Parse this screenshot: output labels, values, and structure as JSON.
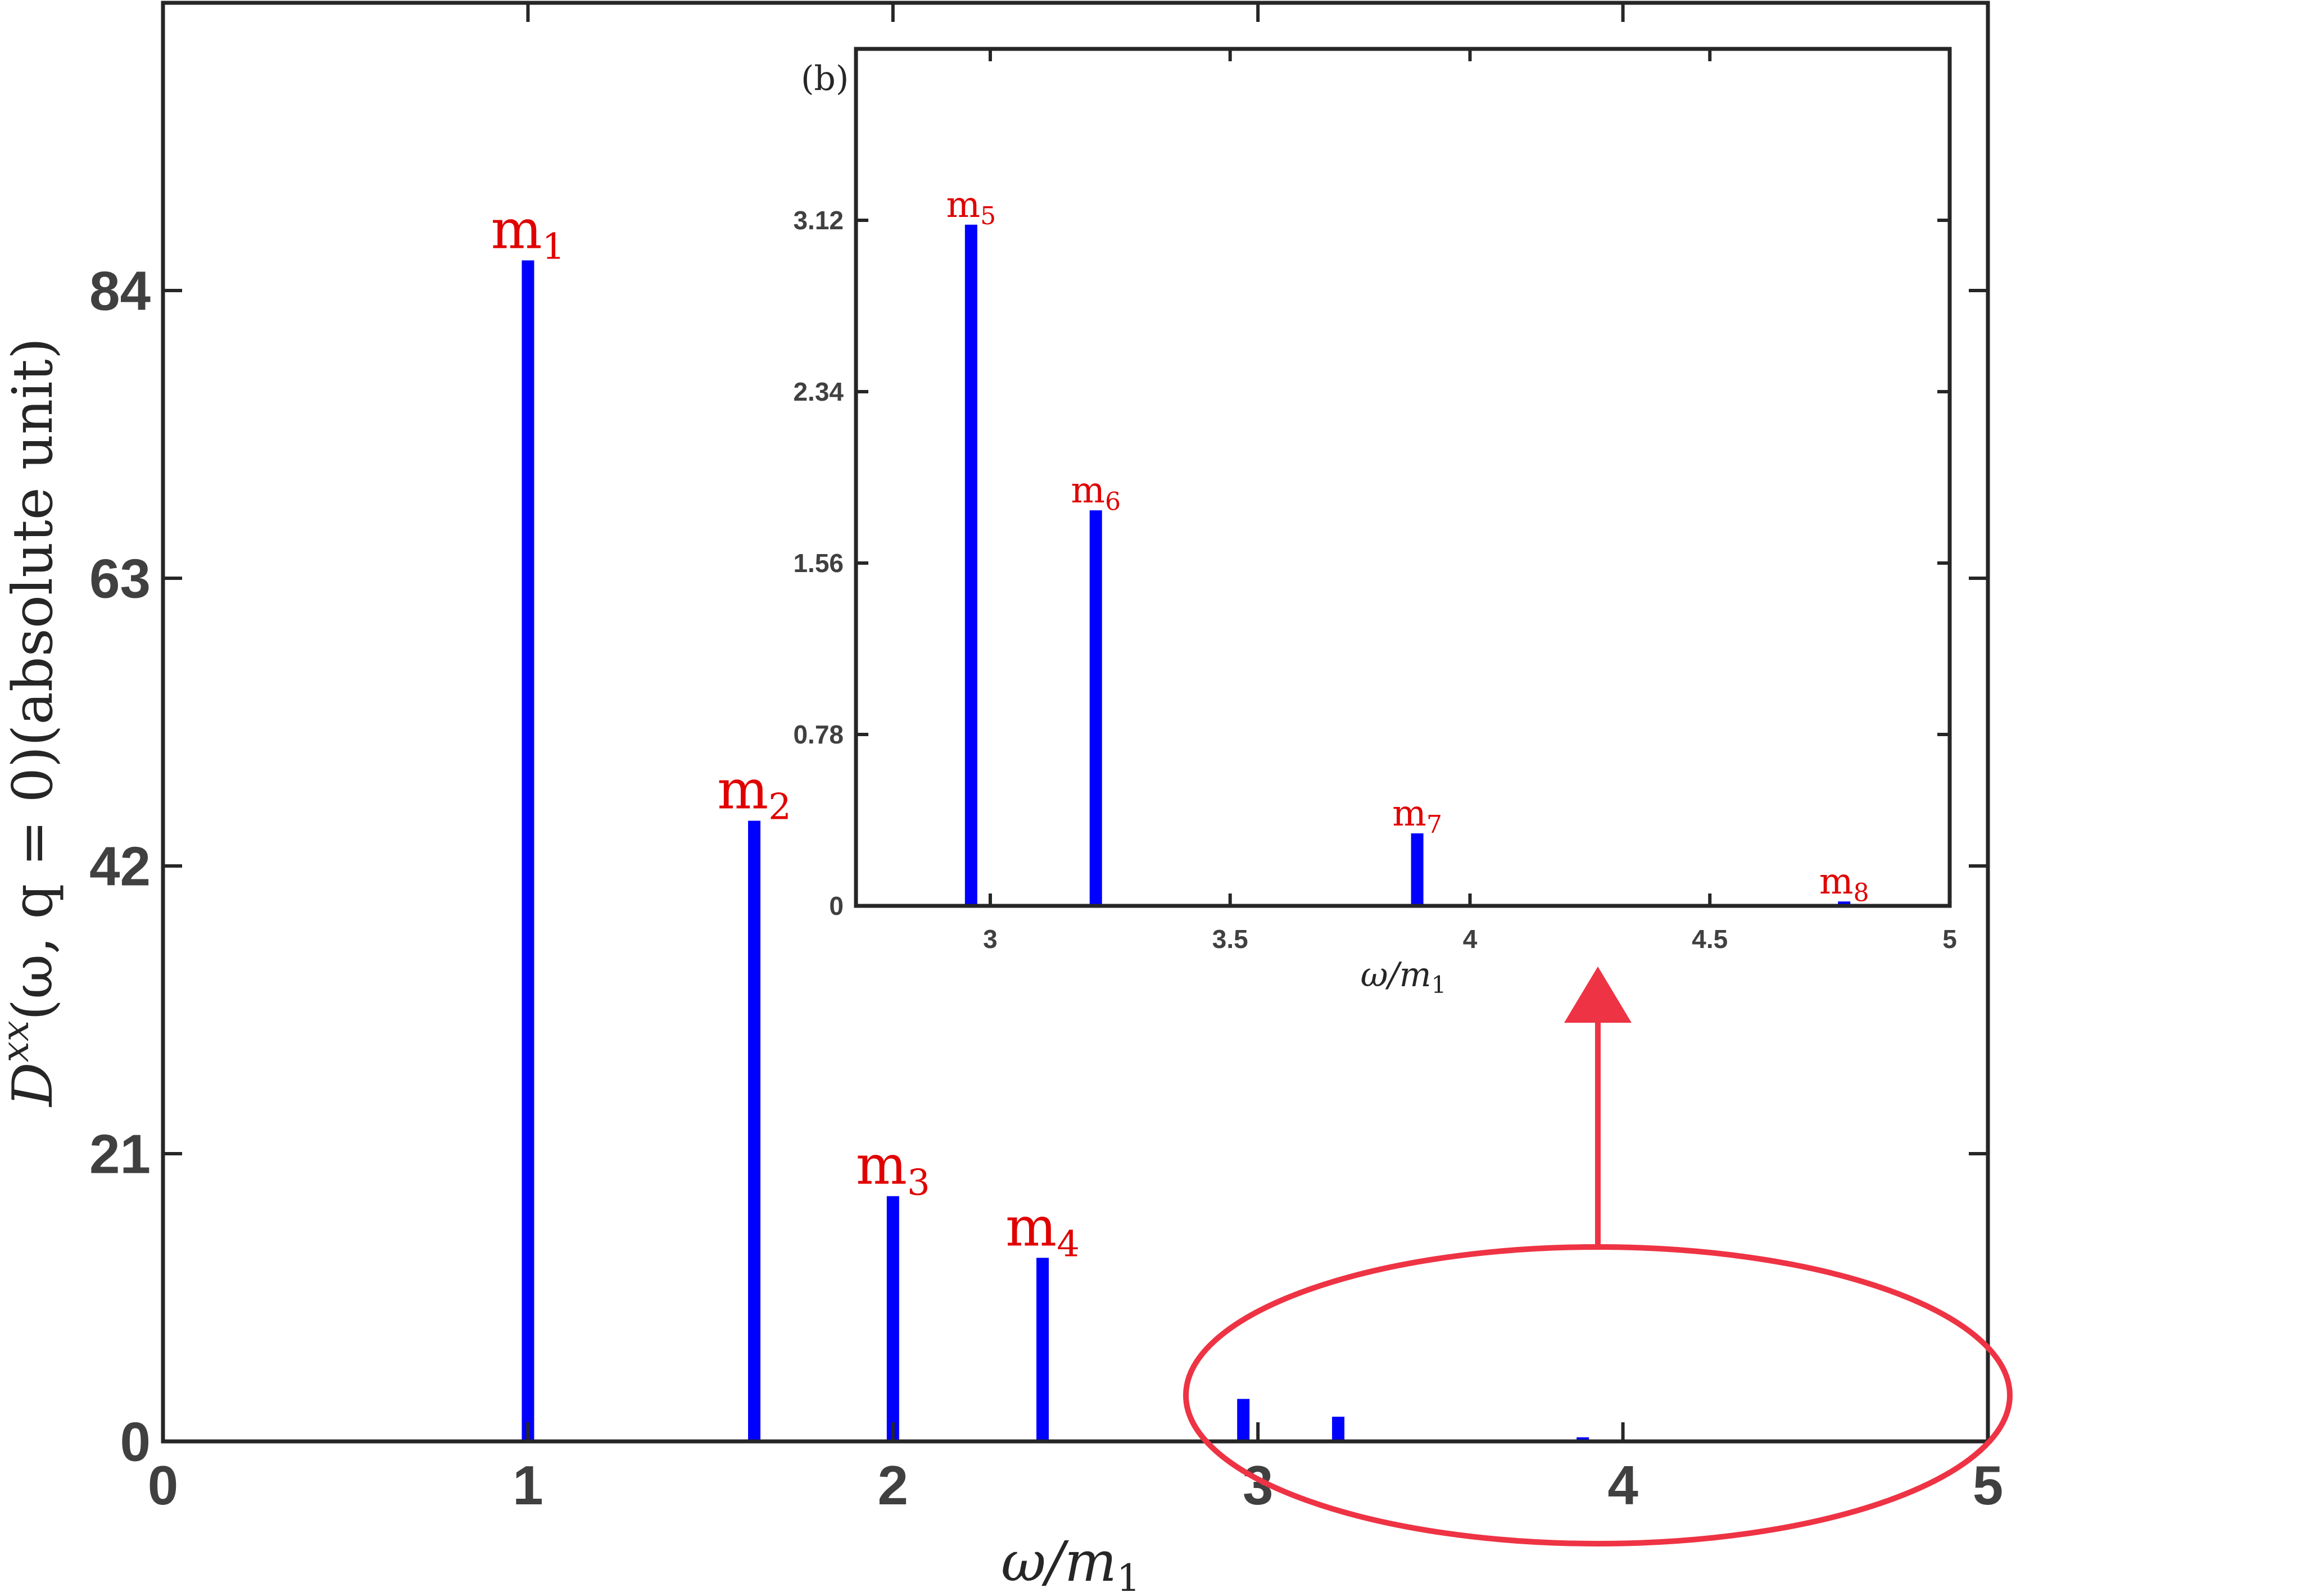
{
  "colors": {
    "bar": "#0000ff",
    "peak_label": "#e00000",
    "axis": "#262626",
    "annotation": "#ee3344"
  },
  "chart_data": [
    {
      "type": "bar",
      "panel": "main",
      "title": "",
      "xlabel_main": "ω/m",
      "xlabel_sub": "1",
      "ylabel_main": "D",
      "ylabel_sup": "xx",
      "ylabel_rest": "(ω, q = 0)(absolute unit)",
      "xlim": [
        0,
        5
      ],
      "ylim": [
        0,
        105
      ],
      "x_ticks": [
        0,
        1,
        2,
        3,
        4,
        5
      ],
      "y_ticks": [
        0,
        21,
        42,
        63,
        84
      ],
      "bars": [
        {
          "x": 1.0,
          "value": 86.2,
          "label": "m",
          "sub": "1"
        },
        {
          "x": 1.62,
          "value": 45.3,
          "label": "m",
          "sub": "2"
        },
        {
          "x": 2.0,
          "value": 17.9,
          "label": "m",
          "sub": "3"
        },
        {
          "x": 2.41,
          "value": 13.4,
          "label": "m",
          "sub": "4"
        },
        {
          "x": 2.96,
          "value": 3.1,
          "label": "",
          "sub": ""
        },
        {
          "x": 3.22,
          "value": 1.8,
          "label": "",
          "sub": ""
        },
        {
          "x": 3.89,
          "value": 0.3,
          "label": "",
          "sub": ""
        },
        {
          "x": 4.78,
          "value": 0.02,
          "label": "",
          "sub": ""
        }
      ]
    },
    {
      "type": "bar",
      "panel": "inset",
      "title": "",
      "panel_label": "(b)",
      "xlabel_main": "ω/m",
      "xlabel_sub": "1",
      "xlim": [
        2.72,
        5
      ],
      "ylim": [
        0,
        3.9
      ],
      "x_ticks": [
        3,
        3.5,
        4,
        4.5,
        5
      ],
      "y_ticks": [
        0,
        0.78,
        1.56,
        2.34,
        3.12
      ],
      "bars": [
        {
          "x": 2.96,
          "value": 3.1,
          "label": "m",
          "sub": "5"
        },
        {
          "x": 3.22,
          "value": 1.8,
          "label": "m",
          "sub": "6"
        },
        {
          "x": 3.89,
          "value": 0.33,
          "label": "m",
          "sub": "7"
        },
        {
          "x": 4.78,
          "value": 0.02,
          "label": "m",
          "sub": "8"
        }
      ]
    }
  ]
}
